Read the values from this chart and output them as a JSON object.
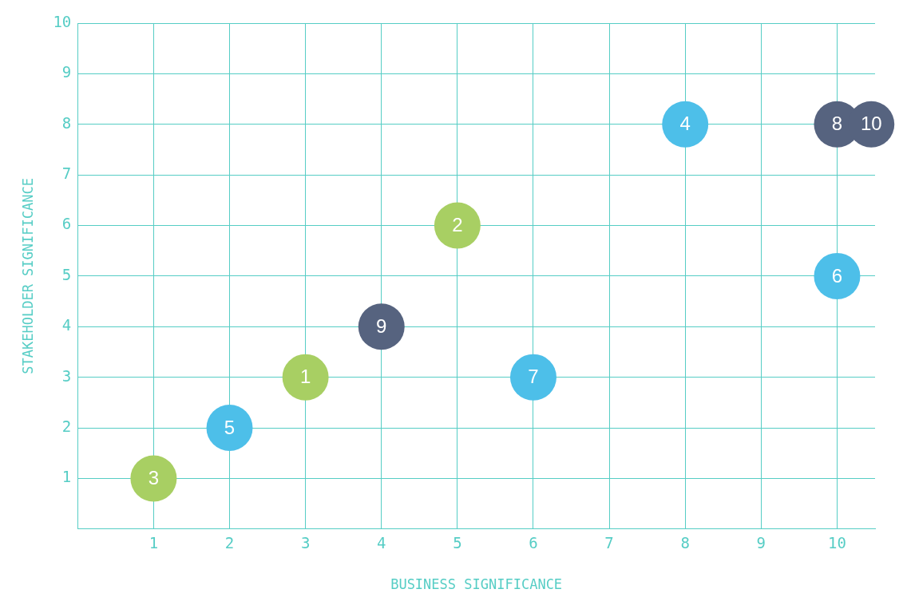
{
  "chart_data": {
    "type": "scatter",
    "xlabel": "BUSINESS SIGNIFICANCE",
    "ylabel": "STAKEHOLDER SIGNIFICANCE",
    "xlim": [
      0,
      10.5
    ],
    "ylim": [
      0,
      10
    ],
    "xticks": [
      1,
      2,
      3,
      4,
      5,
      6,
      7,
      8,
      9,
      10
    ],
    "yticks": [
      1,
      2,
      3,
      4,
      5,
      6,
      7,
      8,
      9,
      10
    ],
    "grid": true,
    "marker": "circle",
    "series": [
      {
        "color": "#a8cf63",
        "x": [
          3,
          5,
          1
        ],
        "values": [
          3,
          6,
          1
        ]
      },
      {
        "color": "#4dbfe9",
        "x": [
          8,
          2,
          10,
          6
        ],
        "values": [
          8,
          2,
          5,
          3
        ]
      },
      {
        "color": "#56637f",
        "x": [
          10,
          4,
          10.45
        ],
        "values": [
          8,
          4,
          8
        ]
      }
    ],
    "annotations": [
      {
        "text": "1",
        "x": 3,
        "y": 3
      },
      {
        "text": "2",
        "x": 5,
        "y": 6
      },
      {
        "text": "3",
        "x": 1,
        "y": 1
      },
      {
        "text": "4",
        "x": 8,
        "y": 8
      },
      {
        "text": "5",
        "x": 2,
        "y": 2
      },
      {
        "text": "6",
        "x": 10,
        "y": 5
      },
      {
        "text": "7",
        "x": 6,
        "y": 3
      },
      {
        "text": "8",
        "x": 10,
        "y": 8
      },
      {
        "text": "9",
        "x": 4,
        "y": 4
      },
      {
        "text": "10",
        "x": 10.45,
        "y": 8
      }
    ]
  }
}
